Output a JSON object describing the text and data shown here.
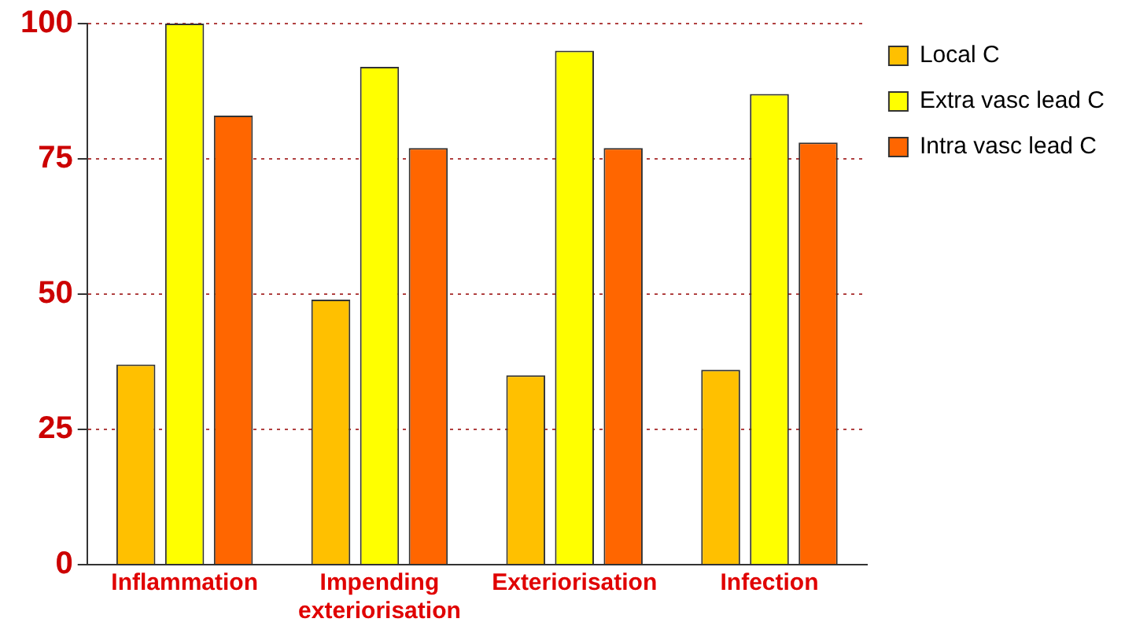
{
  "chart_data": {
    "type": "bar",
    "categories": [
      "Inflammation",
      "Impending exteriorisation",
      "Exteriorisation",
      "Infection"
    ],
    "series": [
      {
        "name": "Local C",
        "color": "#ffc000",
        "values": [
          37,
          49,
          35,
          36
        ]
      },
      {
        "name": "Extra vasc lead C",
        "color": "#ffff00",
        "values": [
          100,
          92,
          95,
          87
        ]
      },
      {
        "name": "Intra vasc lead C",
        "color": "#ff6600",
        "values": [
          83,
          77,
          77,
          78
        ]
      }
    ],
    "ylim": [
      0,
      100
    ],
    "yticks": [
      0,
      25,
      50,
      75,
      100
    ],
    "grid": "y",
    "legend": "right"
  }
}
